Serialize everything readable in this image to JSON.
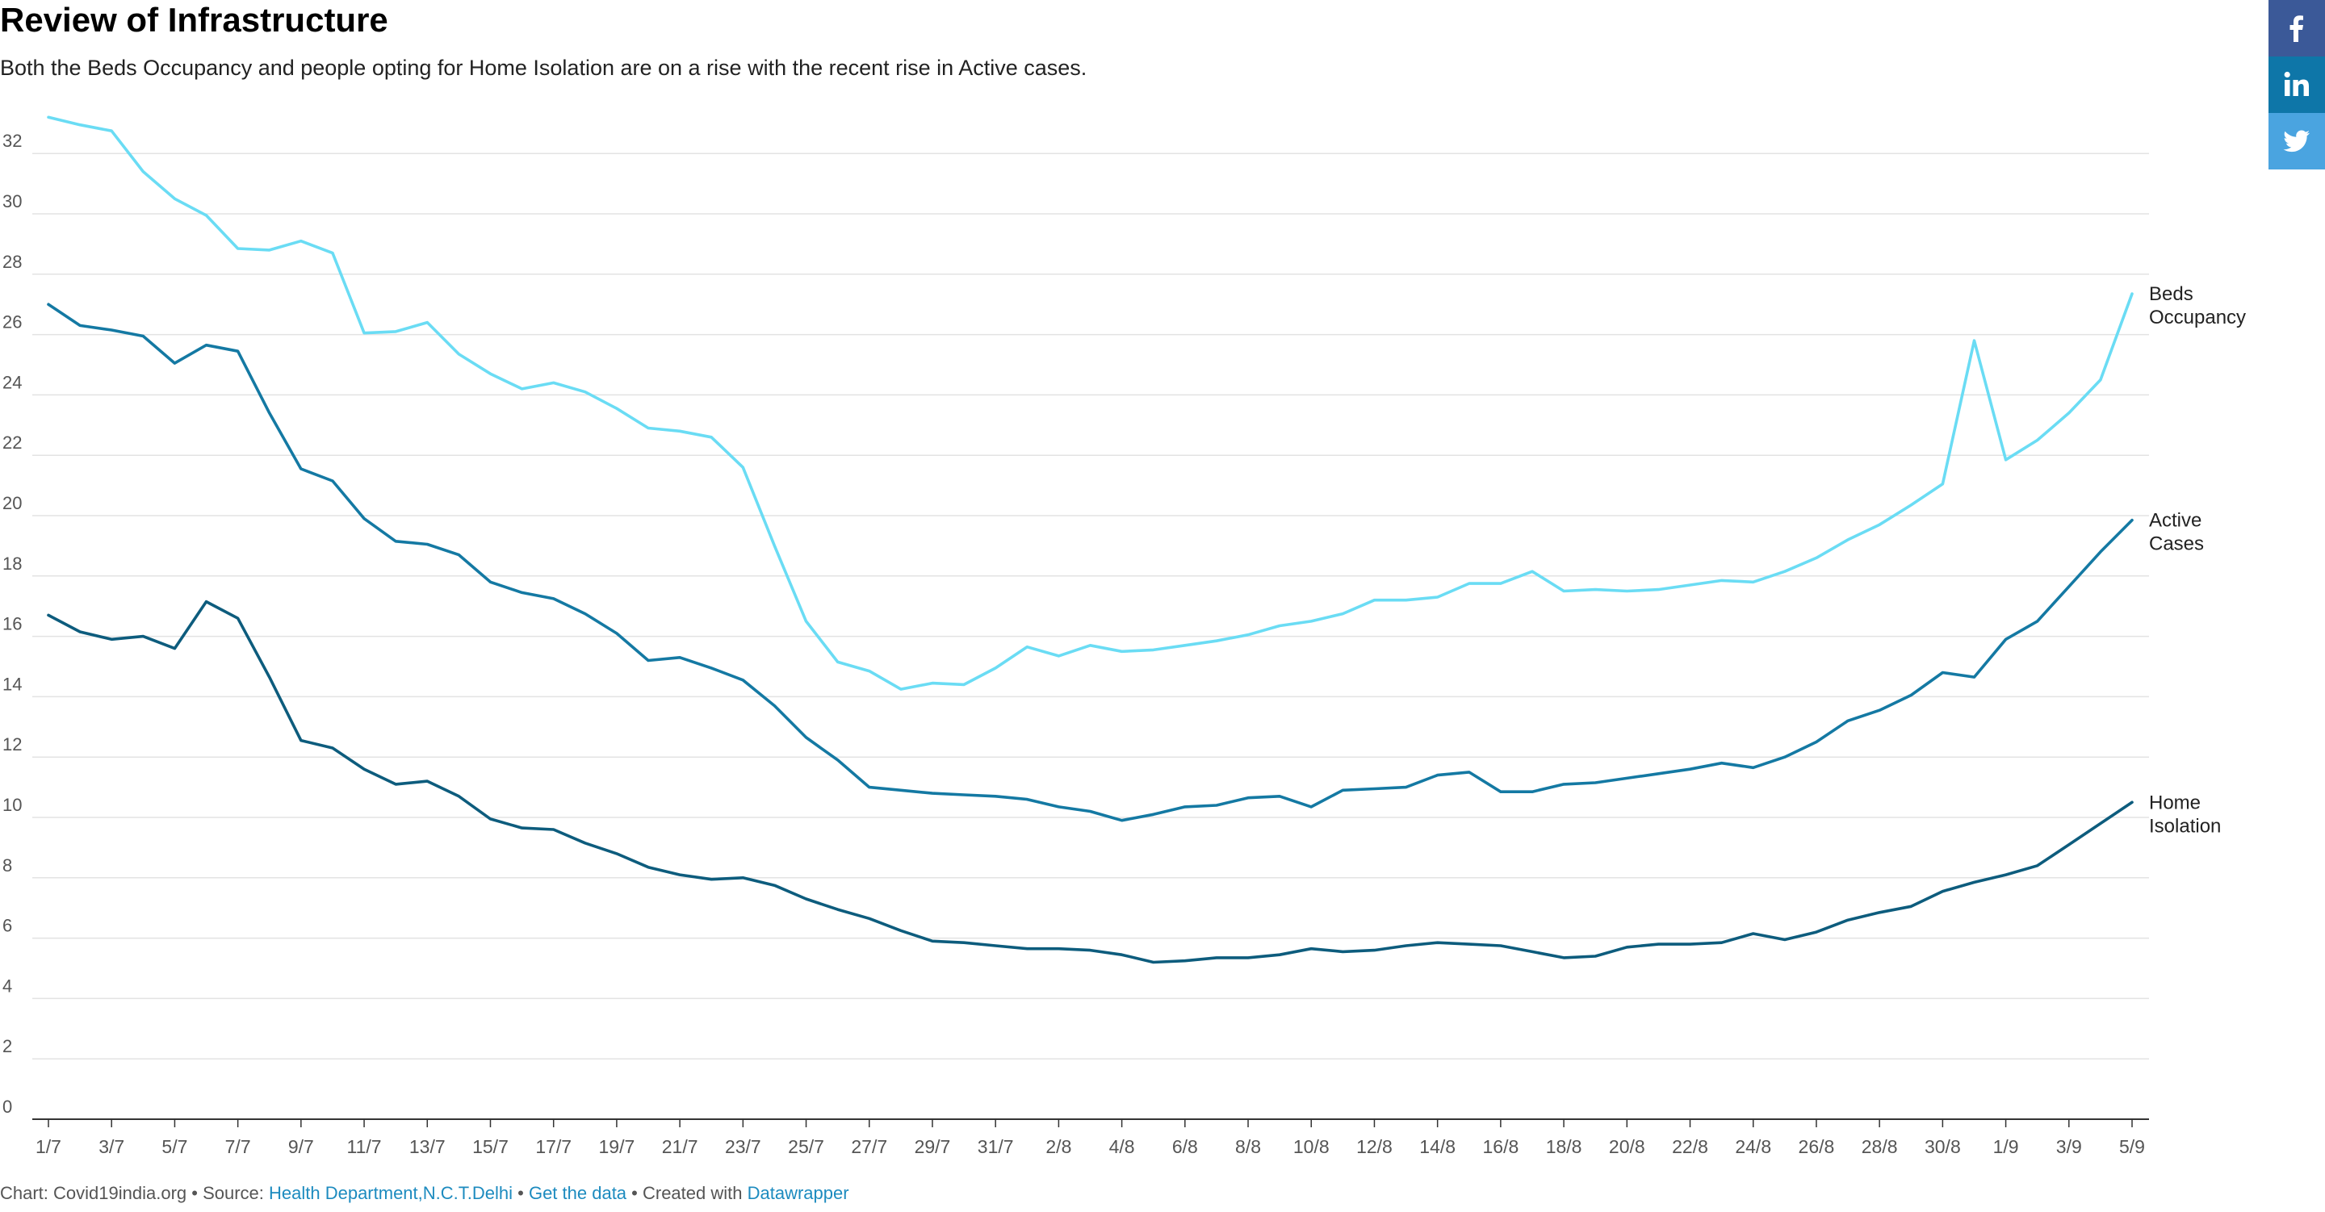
{
  "title": "Review of Infrastructure",
  "subtitle": "Both the Beds Occupancy and people opting for Home Isolation are on a rise with the recent rise in Active cases.",
  "footer": {
    "chart_credit": "Chart: Covid19india.org",
    "sep1": " • Source: ",
    "source_link": "Health Department,N.C.T.Delhi",
    "sep2": " • ",
    "get_data": "Get the data",
    "sep3": " • Created with ",
    "created_with": "Datawrapper"
  },
  "share": {
    "facebook": "facebook-icon",
    "linkedin": "linkedin-icon",
    "twitter": "twitter-icon"
  },
  "chart_data": {
    "type": "line",
    "title": "Review of Infrastructure",
    "xlabel": "",
    "ylabel": "",
    "ylim": [
      0,
      33
    ],
    "yticks": [
      0,
      2,
      4,
      6,
      8,
      10,
      12,
      14,
      16,
      18,
      20,
      22,
      24,
      26,
      28,
      30,
      32
    ],
    "grid": true,
    "legend": "inline labels at right end of each line",
    "xtick_labels": [
      "1/7",
      "3/7",
      "5/7",
      "7/7",
      "9/7",
      "11/7",
      "13/7",
      "15/7",
      "17/7",
      "19/7",
      "21/7",
      "23/7",
      "25/7",
      "27/7",
      "29/7",
      "31/7",
      "2/8",
      "4/8",
      "6/8",
      "8/8",
      "10/8",
      "12/8",
      "14/8",
      "16/8",
      "18/8",
      "20/8",
      "22/8",
      "24/8",
      "26/8",
      "28/8",
      "30/8",
      "1/9",
      "3/9",
      "5/9"
    ],
    "x": [
      "1/7",
      "2/7",
      "3/7",
      "4/7",
      "5/7",
      "6/7",
      "7/7",
      "8/7",
      "9/7",
      "10/7",
      "11/7",
      "12/7",
      "13/7",
      "14/7",
      "15/7",
      "16/7",
      "17/7",
      "18/7",
      "19/7",
      "20/7",
      "21/7",
      "22/7",
      "23/7",
      "24/7",
      "25/7",
      "26/7",
      "27/7",
      "28/7",
      "29/7",
      "30/7",
      "31/7",
      "1/8",
      "2/8",
      "3/8",
      "4/8",
      "5/8",
      "6/8",
      "7/8",
      "8/8",
      "9/8",
      "10/8",
      "11/8",
      "12/8",
      "13/8",
      "14/8",
      "15/8",
      "16/8",
      "17/8",
      "18/8",
      "19/8",
      "20/8",
      "21/8",
      "22/8",
      "23/8",
      "24/8",
      "25/8",
      "26/8",
      "27/8",
      "28/8",
      "29/8",
      "30/8",
      "31/8",
      "1/9",
      "2/9",
      "3/9",
      "4/9",
      "5/9"
    ],
    "series": [
      {
        "name": "Beds Occupancy",
        "label_lines": [
          "Beds",
          "Occupancy"
        ],
        "color": "#6adcf4",
        "values": [
          33.2,
          32.95,
          32.75,
          31.4,
          30.5,
          29.95,
          28.85,
          28.8,
          29.1,
          28.7,
          26.05,
          26.1,
          26.4,
          25.35,
          24.7,
          24.2,
          24.4,
          24.1,
          23.55,
          22.9,
          22.8,
          22.6,
          21.6,
          19.0,
          16.5,
          15.15,
          14.85,
          14.25,
          14.45,
          14.4,
          14.95,
          15.65,
          15.35,
          15.7,
          15.5,
          15.55,
          15.7,
          15.85,
          16.05,
          16.35,
          16.5,
          16.75,
          17.2,
          17.2,
          17.3,
          17.75,
          17.75,
          18.15,
          17.5,
          17.55,
          17.5,
          17.55,
          17.7,
          17.85,
          17.8,
          18.15,
          18.6,
          19.2,
          19.7,
          20.35,
          21.05,
          25.8,
          21.85,
          22.5,
          23.4,
          24.5,
          27.35
        ]
      },
      {
        "name": "Active Cases",
        "label_lines": [
          "Active",
          "Cases"
        ],
        "color": "#1479a3",
        "values": [
          27.0,
          26.3,
          26.15,
          25.95,
          25.05,
          25.65,
          25.45,
          23.4,
          21.55,
          21.15,
          19.9,
          19.15,
          19.05,
          18.7,
          17.8,
          17.45,
          17.25,
          16.75,
          16.1,
          15.2,
          15.3,
          14.95,
          14.55,
          13.7,
          12.65,
          11.9,
          11.0,
          10.9,
          10.8,
          10.75,
          10.7,
          10.6,
          10.35,
          10.2,
          9.9,
          10.1,
          10.35,
          10.4,
          10.65,
          10.7,
          10.35,
          10.9,
          10.95,
          11.0,
          11.4,
          11.5,
          10.85,
          10.85,
          11.1,
          11.15,
          11.3,
          11.45,
          11.6,
          11.8,
          11.65,
          12.0,
          12.5,
          13.2,
          13.55,
          14.05,
          14.8,
          14.65,
          15.9,
          16.5,
          17.65,
          18.8,
          19.85
        ]
      },
      {
        "name": "Home Isolation",
        "label_lines": [
          "Home",
          "Isolation"
        ],
        "color": "#0d5c7d",
        "values": [
          16.7,
          16.15,
          15.9,
          16.0,
          15.6,
          17.15,
          16.6,
          14.65,
          12.55,
          12.3,
          11.6,
          11.1,
          11.2,
          10.7,
          9.95,
          9.65,
          9.6,
          9.15,
          8.8,
          8.35,
          8.1,
          7.95,
          8.0,
          7.75,
          7.3,
          6.95,
          6.65,
          6.25,
          5.9,
          5.85,
          5.75,
          5.65,
          5.65,
          5.6,
          5.45,
          5.2,
          5.25,
          5.35,
          5.35,
          5.45,
          5.65,
          5.55,
          5.6,
          5.75,
          5.85,
          5.8,
          5.75,
          5.55,
          5.35,
          5.4,
          5.7,
          5.8,
          5.8,
          5.85,
          6.15,
          5.95,
          6.2,
          6.6,
          6.85,
          7.05,
          7.55,
          7.85,
          8.1,
          8.4,
          9.1,
          9.8,
          10.5
        ]
      }
    ]
  }
}
